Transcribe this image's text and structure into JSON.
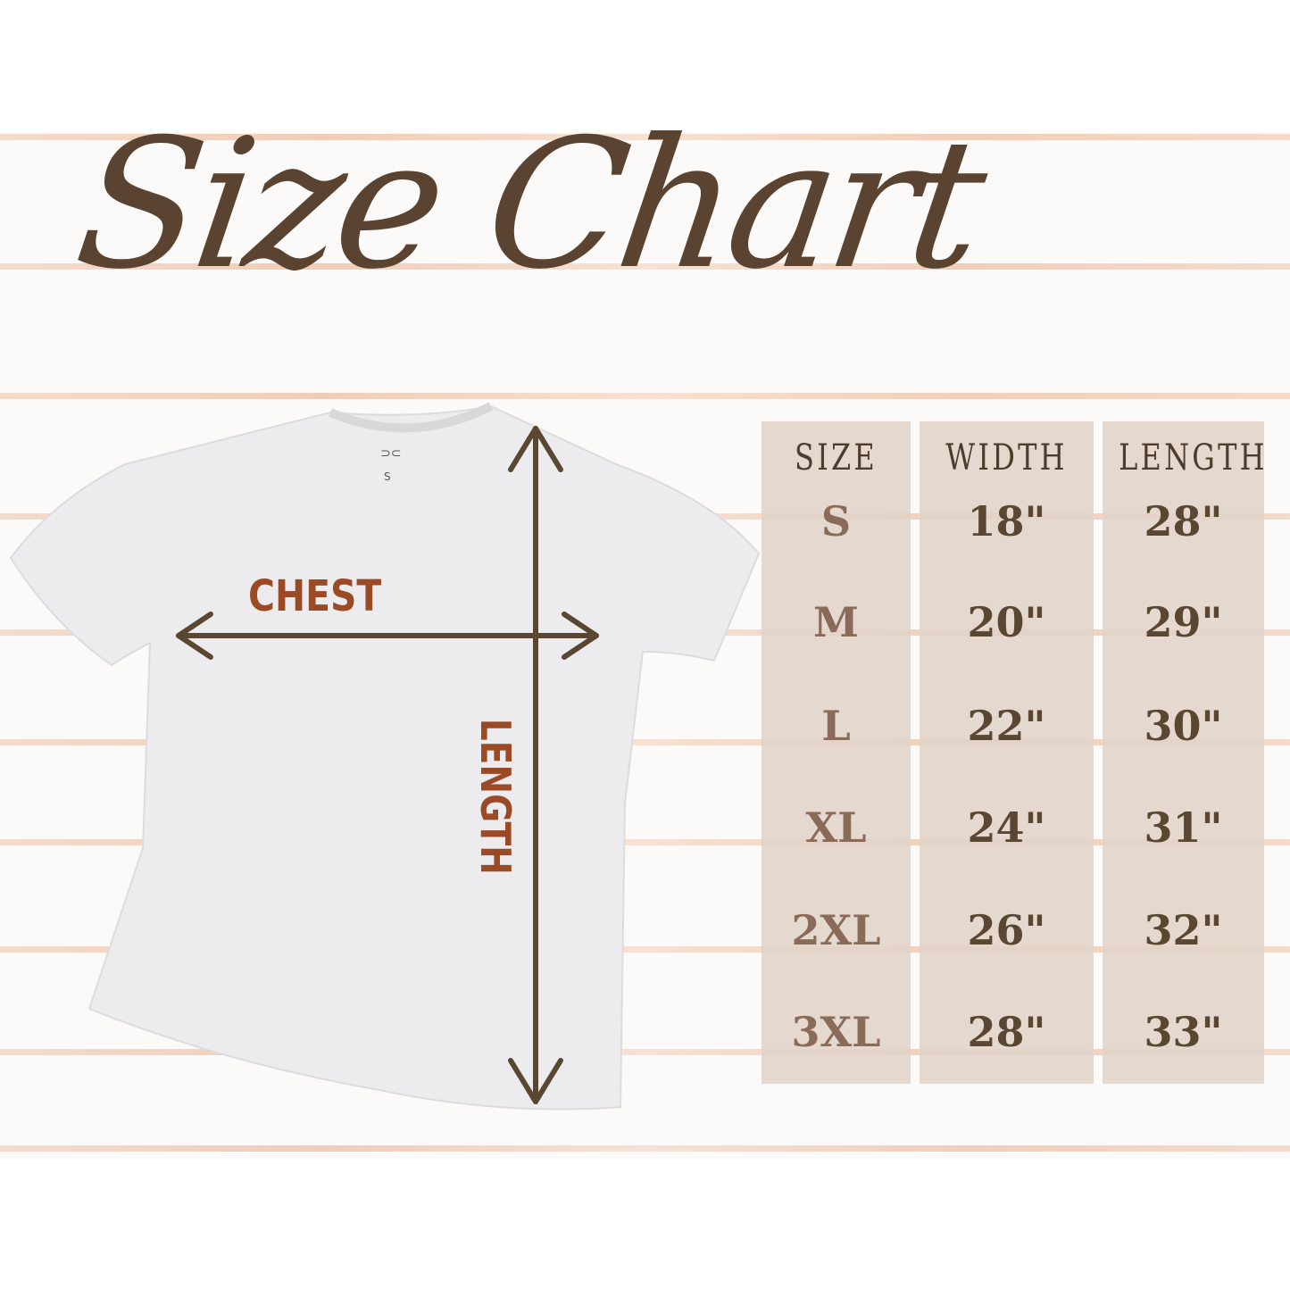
{
  "title": "Size Chart",
  "diagram": {
    "chest_label": "CHEST",
    "length_label": "LENGTH",
    "tag_size": "S"
  },
  "table": {
    "headers": [
      "SIZE",
      "WIDTH",
      "LENGTH"
    ],
    "rows": [
      {
        "size": "S",
        "width": "18\"",
        "length": "28\""
      },
      {
        "size": "M",
        "width": "20\"",
        "length": "29\""
      },
      {
        "size": "L",
        "width": "22\"",
        "length": "30\""
      },
      {
        "size": "XL",
        "width": "24\"",
        "length": "31\""
      },
      {
        "size": "2XL",
        "width": "26\"",
        "length": "32\""
      },
      {
        "size": "3XL",
        "width": "28\"",
        "length": "33\""
      }
    ]
  },
  "colors": {
    "text_dark": "#5a4330",
    "accent": "#9b4a26",
    "panel": "#e0d3c8",
    "stripe": "#eec4ac"
  }
}
